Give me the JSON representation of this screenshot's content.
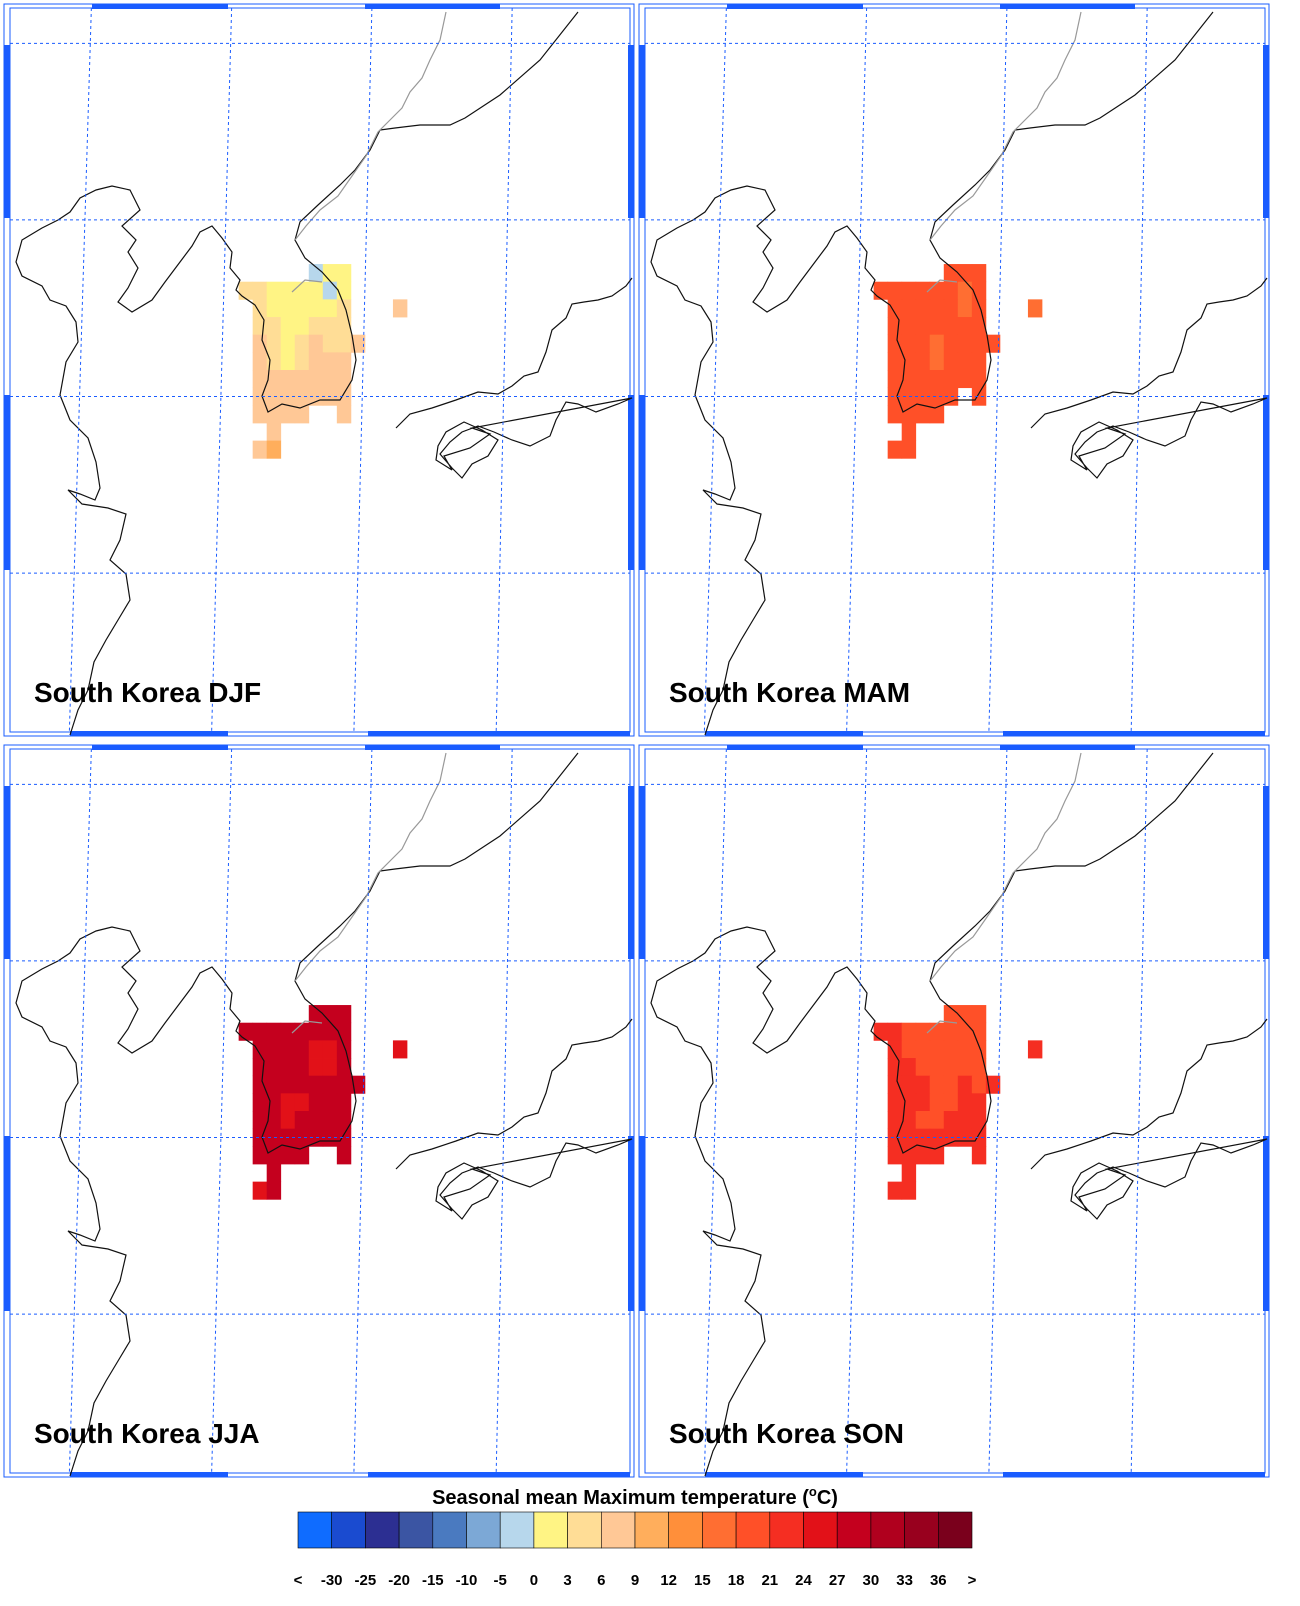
{
  "grid": {
    "xlim": [
      117.1,
      139.2
    ],
    "ylim": [
      25.5,
      46
    ],
    "xticks": [
      120,
      125,
      130,
      135
    ],
    "yticks": [
      30,
      35,
      40,
      45
    ],
    "lon": [
      125.5,
      126.0,
      126.5,
      127.0,
      127.5,
      128.0,
      128.5,
      129.0,
      129.5,
      130.0,
      130.5,
      131.0
    ],
    "lat": [
      38.5,
      38.0,
      37.5,
      37.0,
      36.5,
      36.0,
      35.5,
      35.0,
      34.5,
      34.0,
      33.5
    ]
  },
  "maps": [
    {
      "title": "South Korea DJF",
      "values": [
        [
          null,
          null,
          null,
          null,
          null,
          -1,
          2,
          2,
          null,
          null,
          null,
          null
        ],
        [
          4,
          4,
          2,
          2,
          1,
          1,
          -1,
          2,
          null,
          null,
          null,
          null
        ],
        [
          null,
          5,
          1,
          2,
          1,
          1,
          2,
          4,
          null,
          null,
          null,
          7
        ],
        [
          null,
          5,
          4,
          2,
          2,
          4,
          4,
          4,
          null,
          null,
          null,
          null
        ],
        [
          null,
          7,
          5,
          2,
          4,
          7,
          4,
          5,
          7,
          null,
          null,
          null
        ],
        [
          null,
          7,
          4,
          2,
          5,
          7,
          7,
          6,
          null,
          null,
          null,
          null
        ],
        [
          null,
          7,
          7,
          7,
          7,
          7,
          7,
          7,
          null,
          null,
          null,
          null
        ],
        [
          null,
          7,
          7,
          7,
          7,
          7,
          7,
          7,
          null,
          null,
          null,
          null
        ],
        [
          null,
          7,
          7,
          7,
          7,
          null,
          null,
          7,
          null,
          null,
          null,
          null
        ],
        [
          null,
          null,
          8,
          null,
          null,
          null,
          null,
          null,
          null,
          null,
          null,
          null
        ],
        [
          null,
          7,
          10,
          null,
          null,
          null,
          null,
          null,
          null,
          null,
          null,
          null
        ]
      ]
    },
    {
      "title": "South Korea MAM",
      "values": [
        [
          null,
          null,
          null,
          null,
          null,
          19,
          19,
          19,
          null,
          null,
          null,
          null
        ],
        [
          19,
          19,
          19,
          19,
          19,
          19,
          17,
          19,
          null,
          null,
          null,
          null
        ],
        [
          null,
          19,
          19,
          19,
          19,
          19,
          17,
          19,
          null,
          null,
          null,
          17
        ],
        [
          null,
          19,
          19,
          19,
          19,
          19,
          19,
          19,
          null,
          null,
          null,
          null
        ],
        [
          null,
          19,
          19,
          19,
          17,
          19,
          19,
          19,
          19,
          null,
          null,
          null
        ],
        [
          null,
          19,
          19,
          19,
          17,
          19,
          19,
          19,
          null,
          null,
          null,
          null
        ],
        [
          null,
          19,
          19,
          19,
          19,
          19,
          19,
          19,
          null,
          null,
          null,
          null
        ],
        [
          null,
          19,
          19,
          19,
          19,
          19,
          null,
          19,
          null,
          null,
          null,
          null
        ],
        [
          null,
          19,
          19,
          19,
          19,
          null,
          null,
          null,
          null,
          null,
          null,
          null
        ],
        [
          null,
          null,
          19,
          null,
          null,
          null,
          null,
          null,
          null,
          null,
          null,
          null
        ],
        [
          null,
          19,
          19,
          null,
          null,
          null,
          null,
          null,
          null,
          null,
          null,
          null
        ]
      ]
    },
    {
      "title": "South Korea JJA",
      "values": [
        [
          null,
          null,
          null,
          null,
          null,
          28,
          28,
          28,
          null,
          null,
          null,
          null
        ],
        [
          28,
          28,
          28,
          28,
          28,
          28,
          28,
          28,
          null,
          null,
          null,
          null
        ],
        [
          null,
          28,
          28,
          28,
          28,
          26,
          26,
          28,
          null,
          null,
          null,
          26
        ],
        [
          null,
          28,
          28,
          28,
          28,
          26,
          26,
          28,
          null,
          null,
          null,
          null
        ],
        [
          null,
          28,
          28,
          28,
          28,
          28,
          28,
          28,
          28,
          null,
          null,
          null
        ],
        [
          null,
          28,
          28,
          26,
          26,
          28,
          28,
          28,
          null,
          null,
          null,
          null
        ],
        [
          null,
          28,
          28,
          26,
          28,
          28,
          28,
          28,
          null,
          null,
          null,
          null
        ],
        [
          null,
          28,
          28,
          28,
          28,
          28,
          28,
          28,
          null,
          null,
          null,
          null
        ],
        [
          null,
          28,
          28,
          28,
          28,
          null,
          null,
          28,
          null,
          null,
          null,
          null
        ],
        [
          null,
          null,
          28,
          null,
          null,
          null,
          null,
          null,
          null,
          null,
          null,
          null
        ],
        [
          null,
          26,
          28,
          null,
          null,
          null,
          null,
          null,
          null,
          null,
          null,
          null
        ]
      ]
    },
    {
      "title": "South Korea SON",
      "values": [
        [
          null,
          null,
          null,
          null,
          null,
          20,
          20,
          20,
          null,
          null,
          null,
          null
        ],
        [
          22,
          22,
          20,
          20,
          20,
          20,
          20,
          20,
          null,
          null,
          null,
          null
        ],
        [
          null,
          22,
          20,
          20,
          20,
          20,
          20,
          20,
          null,
          null,
          null,
          22
        ],
        [
          null,
          22,
          22,
          20,
          20,
          20,
          20,
          20,
          null,
          null,
          null,
          null
        ],
        [
          null,
          22,
          22,
          22,
          20,
          20,
          22,
          20,
          22,
          null,
          null,
          null
        ],
        [
          null,
          22,
          22,
          22,
          20,
          20,
          22,
          22,
          null,
          null,
          null,
          null
        ],
        [
          null,
          22,
          22,
          20,
          20,
          22,
          22,
          22,
          null,
          null,
          null,
          null
        ],
        [
          null,
          22,
          22,
          22,
          22,
          22,
          22,
          22,
          null,
          null,
          null,
          null
        ],
        [
          null,
          22,
          22,
          22,
          22,
          null,
          null,
          22,
          null,
          null,
          null,
          null
        ],
        [
          null,
          null,
          22,
          null,
          null,
          null,
          null,
          null,
          null,
          null,
          null,
          null
        ],
        [
          null,
          22,
          23,
          null,
          null,
          null,
          null,
          null,
          null,
          null,
          null,
          null
        ]
      ]
    }
  ],
  "colorbar": {
    "title_before": "Seasonal mean Maximum temperature (",
    "title_sup": "o",
    "title_after": "C)",
    "under_label": "<",
    "over_label": ">",
    "levels": [
      -30,
      -25,
      -20,
      -15,
      -10,
      -5,
      0,
      3,
      6,
      9,
      12,
      15,
      18,
      21,
      24,
      27,
      30,
      33,
      36
    ],
    "colors": [
      "#0f6cff",
      "#1a4bd0",
      "#2c2f92",
      "#3b55a3",
      "#4a7ac0",
      "#7ca8d6",
      "#b7d7ec",
      "#fff484",
      "#ffdd96",
      "#ffc896",
      "#ffae5c",
      "#ff8f3a",
      "#ff6e32",
      "#ff5028",
      "#f52e22",
      "#e21118",
      "#c4001e",
      "#b0001e",
      "#98001e",
      "#7a001c"
    ]
  }
}
